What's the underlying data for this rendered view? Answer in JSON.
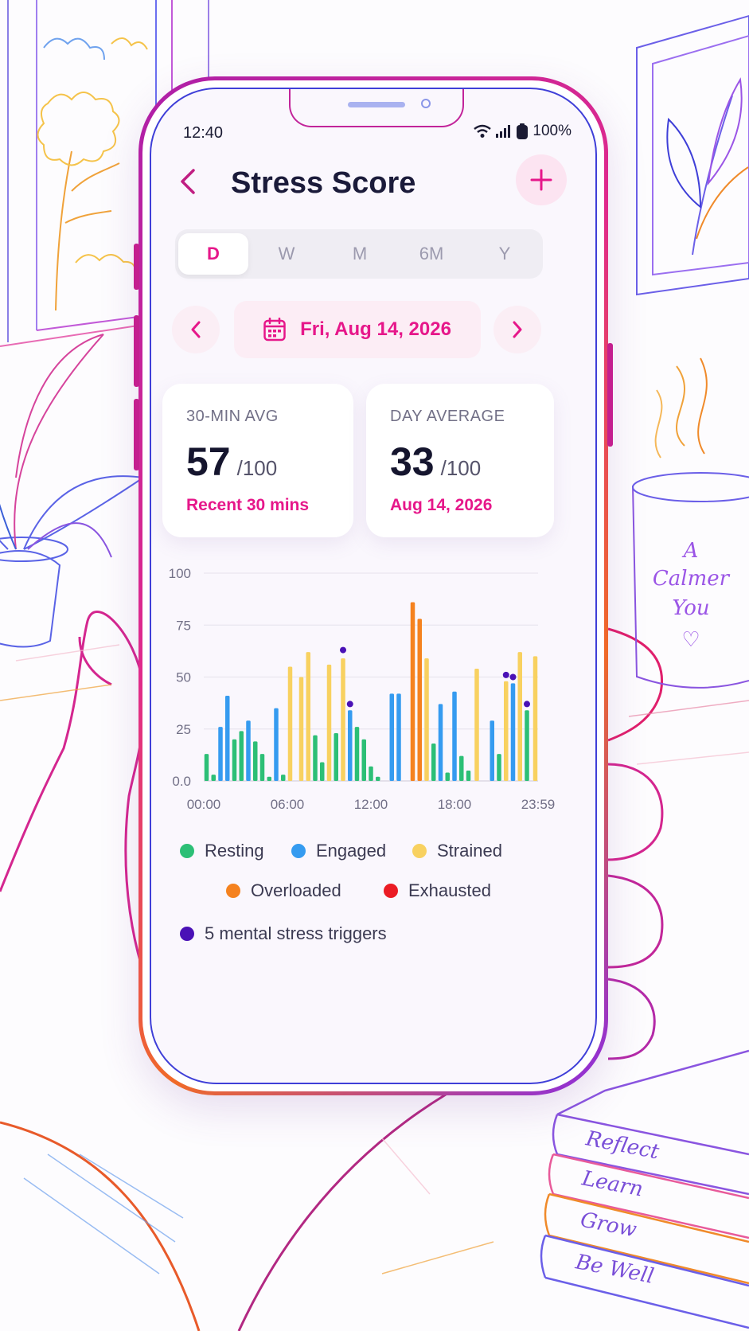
{
  "status_bar": {
    "time": "12:40",
    "battery": "100%"
  },
  "header": {
    "title": "Stress Score"
  },
  "periods": [
    "D",
    "W",
    "M",
    "6M",
    "Y"
  ],
  "selected_period": "D",
  "date_nav": {
    "date": "Fri, Aug 14, 2026"
  },
  "cards": [
    {
      "label": "30-MIN AVG",
      "value": "57",
      "max": "/100",
      "sub": "Recent 30 mins"
    },
    {
      "label": "DAY AVERAGE",
      "value": "33",
      "max": "/100",
      "sub": "Aug 14, 2026"
    }
  ],
  "legend": {
    "items": [
      {
        "label": "Resting",
        "color": "#2cbf76"
      },
      {
        "label": "Engaged",
        "color": "#359bf0"
      },
      {
        "label": "Strained",
        "color": "#f8d160"
      },
      {
        "label": "Overloaded",
        "color": "#f5821f"
      },
      {
        "label": "Exhausted",
        "color": "#eb1c24"
      }
    ],
    "triggers": {
      "label": "5 mental stress triggers",
      "color": "#4a11b6"
    }
  },
  "chart_data": {
    "type": "bar",
    "y_ticks": [
      "100",
      "75",
      "50",
      "25",
      "0.0"
    ],
    "x_tick_labels": [
      "00:00",
      "06:00",
      "12:00",
      "18:00",
      "23:59"
    ],
    "ylim": [
      0,
      100
    ],
    "x_range_hours": [
      0,
      24
    ],
    "bars": [
      {
        "t": 0.2,
        "v": 13,
        "level": "Resting"
      },
      {
        "t": 0.7,
        "v": 3,
        "level": "Resting"
      },
      {
        "t": 1.2,
        "v": 26,
        "level": "Engaged"
      },
      {
        "t": 1.7,
        "v": 41,
        "level": "Engaged"
      },
      {
        "t": 2.2,
        "v": 20,
        "level": "Resting"
      },
      {
        "t": 2.7,
        "v": 24,
        "level": "Resting"
      },
      {
        "t": 3.2,
        "v": 29,
        "level": "Engaged"
      },
      {
        "t": 3.7,
        "v": 19,
        "level": "Resting"
      },
      {
        "t": 4.2,
        "v": 13,
        "level": "Resting"
      },
      {
        "t": 4.7,
        "v": 2,
        "level": "Resting"
      },
      {
        "t": 5.2,
        "v": 35,
        "level": "Engaged"
      },
      {
        "t": 5.7,
        "v": 3,
        "level": "Resting"
      },
      {
        "t": 6.2,
        "v": 55,
        "level": "Strained"
      },
      {
        "t": 7.0,
        "v": 50,
        "level": "Strained"
      },
      {
        "t": 7.5,
        "v": 62,
        "level": "Strained"
      },
      {
        "t": 8.0,
        "v": 22,
        "level": "Resting"
      },
      {
        "t": 8.5,
        "v": 9,
        "level": "Resting"
      },
      {
        "t": 9.0,
        "v": 56,
        "level": "Strained"
      },
      {
        "t": 9.5,
        "v": 23,
        "level": "Resting"
      },
      {
        "t": 10.0,
        "v": 59,
        "level": "Strained"
      },
      {
        "t": 10.5,
        "v": 34,
        "level": "Engaged"
      },
      {
        "t": 11.0,
        "v": 26,
        "level": "Resting"
      },
      {
        "t": 11.5,
        "v": 20,
        "level": "Resting"
      },
      {
        "t": 12.0,
        "v": 7,
        "level": "Resting"
      },
      {
        "t": 12.5,
        "v": 2,
        "level": "Resting"
      },
      {
        "t": 13.5,
        "v": 42,
        "level": "Engaged"
      },
      {
        "t": 14.0,
        "v": 42,
        "level": "Engaged"
      },
      {
        "t": 15.0,
        "v": 86,
        "level": "Overloaded"
      },
      {
        "t": 15.5,
        "v": 78,
        "level": "Overloaded"
      },
      {
        "t": 16.0,
        "v": 59,
        "level": "Strained"
      },
      {
        "t": 16.5,
        "v": 18,
        "level": "Resting"
      },
      {
        "t": 17.0,
        "v": 37,
        "level": "Engaged"
      },
      {
        "t": 17.5,
        "v": 4,
        "level": "Resting"
      },
      {
        "t": 18.0,
        "v": 43,
        "level": "Engaged"
      },
      {
        "t": 18.5,
        "v": 12,
        "level": "Resting"
      },
      {
        "t": 19.0,
        "v": 5,
        "level": "Resting"
      },
      {
        "t": 19.6,
        "v": 54,
        "level": "Strained"
      },
      {
        "t": 20.7,
        "v": 29,
        "level": "Engaged"
      },
      {
        "t": 21.2,
        "v": 13,
        "level": "Resting"
      },
      {
        "t": 21.7,
        "v": 48,
        "level": "Strained"
      },
      {
        "t": 22.2,
        "v": 47,
        "level": "Engaged"
      },
      {
        "t": 22.7,
        "v": 62,
        "level": "Strained"
      },
      {
        "t": 23.2,
        "v": 34,
        "level": "Resting"
      },
      {
        "t": 23.8,
        "v": 60,
        "level": "Strained"
      }
    ],
    "triggers": [
      {
        "t": 10.0,
        "v": 63
      },
      {
        "t": 10.5,
        "v": 37
      },
      {
        "t": 21.7,
        "v": 51
      },
      {
        "t": 22.2,
        "v": 50
      },
      {
        "t": 23.2,
        "v": 37
      }
    ]
  },
  "decor": {
    "mug_text": [
      "A",
      "Calmer",
      "You",
      "♡"
    ],
    "book_titles": [
      "Reflect",
      "Learn",
      "Grow",
      "Be Well"
    ]
  }
}
